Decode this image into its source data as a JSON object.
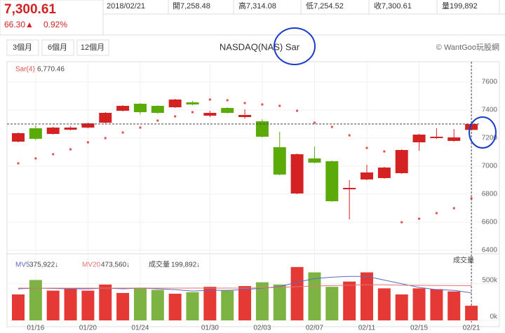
{
  "header": {
    "price": "7,300.61",
    "change": "66.30▲",
    "change_pct": "0.92%",
    "date": "2018/02/21",
    "open": "開7,258.48",
    "high": "高7,314.08",
    "low": "低7,254.52",
    "close": "收7,300.61",
    "volume": "量199,892"
  },
  "buttons": [
    "3個月",
    "6個月",
    "12個月"
  ],
  "copyright": "© WantGoo玩股網",
  "chart_data": [
    {
      "type": "candlestick",
      "title": "NASDAQ(NAS) Sar",
      "categories": [
        null,
        "01/16",
        null,
        null,
        "01/20",
        null,
        null,
        "01/24",
        null,
        null,
        null,
        "01/30",
        null,
        null,
        "02/03",
        null,
        null,
        "02/07",
        null,
        null,
        "02/11",
        null,
        null,
        "02/15",
        null,
        null,
        "02/21"
      ],
      "open": [
        7175,
        7270,
        7230,
        7260,
        7275,
        7310,
        7395,
        7445,
        7430,
        7420,
        7455,
        7360,
        7415,
        7350,
        7320,
        7135,
        6805,
        7055,
        7035,
        6835,
        6905,
        6915,
        6950,
        7170,
        7200,
        7180,
        7258.48
      ],
      "high": [
        7240,
        7290,
        7280,
        7285,
        7310,
        7385,
        7435,
        7450,
        7435,
        7480,
        7465,
        7395,
        7420,
        7405,
        7335,
        7245,
        7090,
        7140,
        7040,
        6900,
        7010,
        6995,
        7120,
        7230,
        7270,
        7265,
        7314.08
      ],
      "low": [
        7170,
        7185,
        7225,
        7255,
        7270,
        7305,
        7390,
        7370,
        7375,
        7415,
        7435,
        7350,
        7375,
        7340,
        7205,
        6935,
        6800,
        7020,
        6745,
        6620,
        6900,
        6910,
        6945,
        7110,
        7195,
        7175,
        7254.52
      ],
      "close": [
        7235,
        7195,
        7275,
        7275,
        7305,
        7380,
        7430,
        7385,
        7380,
        7475,
        7440,
        7380,
        7380,
        7365,
        7210,
        6940,
        7085,
        7025,
        6750,
        6845,
        6955,
        6990,
        7115,
        7225,
        7210,
        7205,
        7300.61
      ],
      "up_color": "#d42222",
      "down_color": "#5aaa08",
      "sar": {
        "name": "Sar(4)",
        "value_label": "6,770.46",
        "color": "#e05050",
        "values": [
          7020,
          7055,
          7085,
          7120,
          7170,
          7200,
          7240,
          7275,
          7325,
          7355,
          7385,
          7475,
          7470,
          7450,
          7440,
          7430,
          7395,
          7310,
          7280,
          7220,
          7130,
          7105,
          6600,
          6625,
          6665,
          6700,
          6770.46
        ]
      },
      "ylim": [
        6385,
        7745
      ],
      "yticks": [
        6400,
        6600,
        6800,
        7000,
        7200,
        7400,
        7600
      ],
      "grid": true
    },
    {
      "type": "bar",
      "name": "成交量",
      "value_label": "199,892↓",
      "axis_label": "成交量",
      "values": [
        354000,
        551000,
        406000,
        437000,
        406000,
        489000,
        374000,
        447000,
        416000,
        364000,
        385000,
        458000,
        406000,
        468000,
        520000,
        489000,
        728000,
        655000,
        458000,
        530000,
        655000,
        437000,
        354000,
        437000,
        426000,
        395000,
        199892
      ],
      "up_color": "#e53935",
      "down_color": "#7cb342",
      "series": [
        {
          "name": "MV5",
          "value_label": "375,922↓",
          "color": "#5c6bc0",
          "values": [
            430000,
            440000,
            435000,
            430000,
            430000,
            440000,
            430000,
            440000,
            430000,
            420000,
            400000,
            410000,
            410000,
            420000,
            440000,
            460000,
            520000,
            570000,
            590000,
            600000,
            600000,
            550000,
            500000,
            450000,
            420000,
            410000,
            375922
          ]
        },
        {
          "name": "MV20",
          "value_label": "473,560↓",
          "color": "#e57373",
          "values": [
            440000,
            440000,
            440000,
            440000,
            440000,
            440000,
            440000,
            440000,
            440000,
            440000,
            440000,
            440000,
            440000,
            440000,
            445000,
            450000,
            460000,
            470000,
            475000,
            480000,
            485000,
            485000,
            480000,
            478000,
            476000,
            475000,
            473560
          ]
        }
      ],
      "ylim": [
        0,
        880000
      ],
      "yticks": [
        {
          "value": 0,
          "label": "0k"
        },
        {
          "value": 500000,
          "label": "500k"
        }
      ]
    }
  ]
}
